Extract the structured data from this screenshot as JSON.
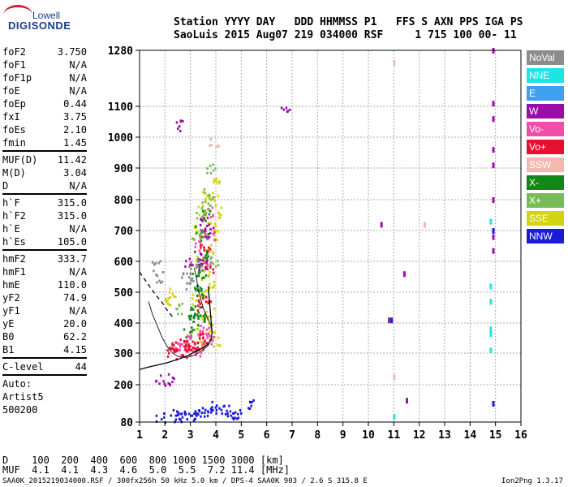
{
  "logo": {
    "top": "Lowell",
    "bottom": "DIGISONDE"
  },
  "header": {
    "line1": "Station YYYY DAY   DDD HHMMSS P1   FFS S AXN PPS IGA PS",
    "line2": "SaoLuis 2015 Aug07 219 034000 RSF     1 715 100 00- 11"
  },
  "params": {
    "group1": [
      {
        "k": "foF2",
        "v": "3.750"
      },
      {
        "k": "foF1",
        "v": "N/A"
      },
      {
        "k": "foF1p",
        "v": "N/A"
      },
      {
        "k": "foE",
        "v": "N/A"
      },
      {
        "k": "foEp",
        "v": "0.44"
      },
      {
        "k": "fxI",
        "v": "3.75"
      },
      {
        "k": "foEs",
        "v": "2.10"
      },
      {
        "k": "fmin",
        "v": "1.45"
      }
    ],
    "group2": [
      {
        "k": "MUF(D)",
        "v": "11.42"
      },
      {
        "k": "M(D)",
        "v": "3.04"
      },
      {
        "k": "D",
        "v": "N/A"
      }
    ],
    "group3": [
      {
        "k": "h`F",
        "v": "315.0"
      },
      {
        "k": "h`F2",
        "v": "315.0"
      },
      {
        "k": "h`E",
        "v": "N/A"
      },
      {
        "k": "h`Es",
        "v": "105.0"
      }
    ],
    "group4": [
      {
        "k": "hmF2",
        "v": "333.7"
      },
      {
        "k": "hmF1",
        "v": "N/A"
      },
      {
        "k": "hmE",
        "v": "110.0"
      },
      {
        "k": "yF2",
        "v": "74.9"
      },
      {
        "k": "yF1",
        "v": "N/A"
      },
      {
        "k": "yE",
        "v": "20.0"
      },
      {
        "k": "B0",
        "v": "62.2"
      },
      {
        "k": "B1",
        "v": "4.15"
      }
    ],
    "group5": [
      {
        "k": "C-level",
        "v": "44"
      }
    ],
    "auto": [
      "Auto:",
      "Artist5",
      "500200"
    ]
  },
  "legend": [
    {
      "label": "NoVal",
      "color": "#8c8c8c"
    },
    {
      "label": "NNE",
      "color": "#1ee4e4"
    },
    {
      "label": "E",
      "color": "#3ea0f0"
    },
    {
      "label": "W",
      "color": "#9a0da6"
    },
    {
      "label": "Vo-",
      "color": "#f04ea8"
    },
    {
      "label": "Vo+",
      "color": "#e8102e"
    },
    {
      "label": "SSW",
      "color": "#f3b8b0"
    },
    {
      "label": "X-",
      "color": "#11871a"
    },
    {
      "label": "X+",
      "color": "#78bc58"
    },
    {
      "label": "SSE",
      "color": "#d4d40e"
    },
    {
      "label": "NNW",
      "color": "#1a1ad8"
    }
  ],
  "footer": {
    "line1": "D    100  200  400  600  800 1000 1500 3000 [km]",
    "line2": "MUF  4.1  4.1  4.3  4.6  5.0  5.5  7.2 11.4 [MHz]",
    "line3": "SAA0K_2015219034000.RSF / 300fx256h 50 kHz 5.0 km / DPS-4 SAA0K 903 / 2.6 S 315.8 E",
    "line4": "Ion2Png 1.3.17"
  },
  "chart_data": {
    "type": "scatter",
    "x_ticks": [
      1,
      2,
      3,
      4,
      5,
      6,
      7,
      8,
      9,
      10,
      11,
      12,
      13,
      14,
      15,
      16
    ],
    "y_ticks": [
      80,
      200,
      300,
      400,
      500,
      600,
      700,
      800,
      900,
      1000,
      1100,
      1280
    ],
    "xlim": [
      1,
      16
    ],
    "ylim": [
      80,
      1280
    ],
    "grid": true,
    "f_layer_trace": {
      "x": [
        1.35,
        1.5,
        1.7,
        1.9,
        2.1,
        2.3,
        2.5,
        2.7,
        2.9,
        3.1,
        3.3,
        3.5,
        3.7,
        3.8,
        3.85,
        3.8,
        3.65,
        3.5,
        3.4,
        3.3,
        3.25,
        3.2,
        3.15
      ],
      "y": [
        470,
        430,
        390,
        350,
        320,
        300,
        290,
        286,
        287,
        292,
        300,
        312,
        325,
        345,
        365,
        395,
        420,
        450,
        480,
        510,
        540,
        560,
        580
      ]
    },
    "profile": {
      "x": [
        1.0,
        1.3,
        1.7,
        2.1,
        2.5,
        2.9,
        3.2,
        3.5,
        3.7,
        3.82,
        3.85,
        3.82,
        3.78,
        3.74,
        3.7
      ],
      "y": [
        248,
        255,
        262,
        270,
        280,
        292,
        305,
        318,
        330,
        345,
        370,
        400,
        440,
        480,
        520
      ]
    },
    "topside_dashed": {
      "x": [
        1.0,
        1.3,
        1.6,
        1.9,
        2.1,
        2.3
      ],
      "y": [
        565,
        530,
        495,
        465,
        440,
        420
      ]
    },
    "clusters": [
      {
        "name": "SSE",
        "color": "#d4d40e",
        "points": [
          [
            3.6,
            560
          ],
          [
            3.7,
            640
          ],
          [
            3.8,
            720
          ],
          [
            3.9,
            800
          ],
          [
            3.95,
            860
          ],
          [
            3.5,
            500
          ],
          [
            3.2,
            480
          ],
          [
            3.4,
            600
          ],
          [
            3.75,
            440
          ],
          [
            3.85,
            380
          ],
          [
            3.1,
            380
          ],
          [
            3.5,
            420
          ],
          [
            3.9,
            690
          ],
          [
            3.8,
            520
          ],
          [
            4.0,
            760
          ],
          [
            3.3,
            700
          ],
          [
            3.45,
            770
          ],
          [
            3.65,
            810
          ],
          [
            2.2,
            500
          ],
          [
            2.0,
            480
          ],
          [
            3.95,
            340
          ],
          [
            3.4,
            330
          ]
        ]
      },
      {
        "name": "X-",
        "color": "#11871a",
        "points": [
          [
            3.2,
            440
          ],
          [
            3.3,
            500
          ],
          [
            3.4,
            560
          ],
          [
            3.5,
            620
          ],
          [
            3.2,
            580
          ],
          [
            3.1,
            410
          ],
          [
            3.35,
            700
          ],
          [
            3.55,
            680
          ],
          [
            3.6,
            750
          ],
          [
            2.9,
            370
          ],
          [
            3.0,
            440
          ],
          [
            3.4,
            420
          ],
          [
            3.25,
            520
          ]
        ]
      },
      {
        "name": "Vo-",
        "color": "#f04ea8",
        "points": [
          [
            2.8,
            330
          ],
          [
            2.6,
            320
          ],
          [
            3.0,
            350
          ],
          [
            3.3,
            380
          ],
          [
            3.5,
            370
          ],
          [
            3.4,
            340
          ],
          [
            3.7,
            350
          ],
          [
            2.5,
            310
          ],
          [
            3.2,
            310
          ],
          [
            3.0,
            300
          ],
          [
            3.6,
            600
          ],
          [
            3.8,
            680
          ],
          [
            3.5,
            700
          ],
          [
            3.3,
            650
          ],
          [
            3.7,
            760
          ]
        ]
      },
      {
        "name": "Vo+",
        "color": "#e8102e",
        "points": [
          [
            2.4,
            320
          ],
          [
            2.7,
            340
          ],
          [
            2.9,
            330
          ],
          [
            3.1,
            320
          ],
          [
            3.3,
            330
          ],
          [
            3.5,
            350
          ],
          [
            2.2,
            310
          ],
          [
            2.6,
            300
          ],
          [
            3.4,
            460
          ],
          [
            3.6,
            480
          ],
          [
            3.55,
            650
          ],
          [
            3.75,
            580
          ]
        ]
      },
      {
        "name": "X+",
        "color": "#78bc58",
        "points": [
          [
            3.6,
            780
          ],
          [
            3.7,
            820
          ],
          [
            3.4,
            750
          ],
          [
            3.8,
            900
          ],
          [
            3.2,
            680
          ],
          [
            2.5,
            450
          ],
          [
            3.9,
            600
          ]
        ]
      },
      {
        "name": "W",
        "color": "#9a0da6",
        "points": [
          [
            3.45,
            590
          ],
          [
            3.3,
            620
          ],
          [
            2.9,
            600
          ],
          [
            3.55,
            730
          ],
          [
            3.7,
            700
          ],
          [
            2.2,
            220
          ],
          [
            1.8,
            215
          ],
          [
            6.7,
            1100
          ],
          [
            2.6,
            1040
          ],
          [
            10.5,
            720
          ],
          [
            10.8,
            410
          ],
          [
            11.5,
            150
          ],
          [
            11.4,
            560
          ],
          [
            14.9,
            1110
          ],
          [
            14.9,
            1060
          ],
          [
            14.9,
            960
          ],
          [
            14.9,
            910
          ],
          [
            14.9,
            800
          ],
          [
            14.9,
            680
          ],
          [
            14.9,
            635
          ],
          [
            14.9,
            1280
          ]
        ]
      },
      {
        "name": "NNW",
        "color": "#1a1ad8",
        "points": [
          [
            1.8,
            100
          ],
          [
            2.3,
            105
          ],
          [
            2.8,
            110
          ],
          [
            3.3,
            115
          ],
          [
            3.8,
            130
          ],
          [
            4.0,
            120
          ],
          [
            4.3,
            125
          ],
          [
            4.6,
            115
          ],
          [
            3.0,
            100
          ],
          [
            3.5,
            105
          ],
          [
            4.8,
            110
          ],
          [
            2.5,
            95
          ],
          [
            5.3,
            140
          ],
          [
            10.9,
            410
          ],
          [
            14.9,
            700
          ],
          [
            14.9,
            140
          ]
        ]
      },
      {
        "name": "NNE",
        "color": "#1ee4e4",
        "points": [
          [
            14.8,
            520
          ],
          [
            14.8,
            470
          ],
          [
            14.8,
            380
          ],
          [
            14.8,
            365
          ],
          [
            14.8,
            310
          ],
          [
            14.8,
            730
          ],
          [
            11.0,
            98
          ]
        ]
      },
      {
        "name": "SSW",
        "color": "#f3b8b0",
        "points": [
          [
            11.0,
            1240
          ],
          [
            12.2,
            720
          ],
          [
            11.0,
            225
          ],
          [
            3.9,
            990
          ]
        ]
      },
      {
        "name": "NoVal",
        "color": "#8c8c8c",
        "points": [
          [
            3.0,
            530
          ],
          [
            2.8,
            560
          ],
          [
            3.1,
            590
          ],
          [
            1.8,
            550
          ],
          [
            1.6,
            590
          ]
        ]
      }
    ]
  }
}
